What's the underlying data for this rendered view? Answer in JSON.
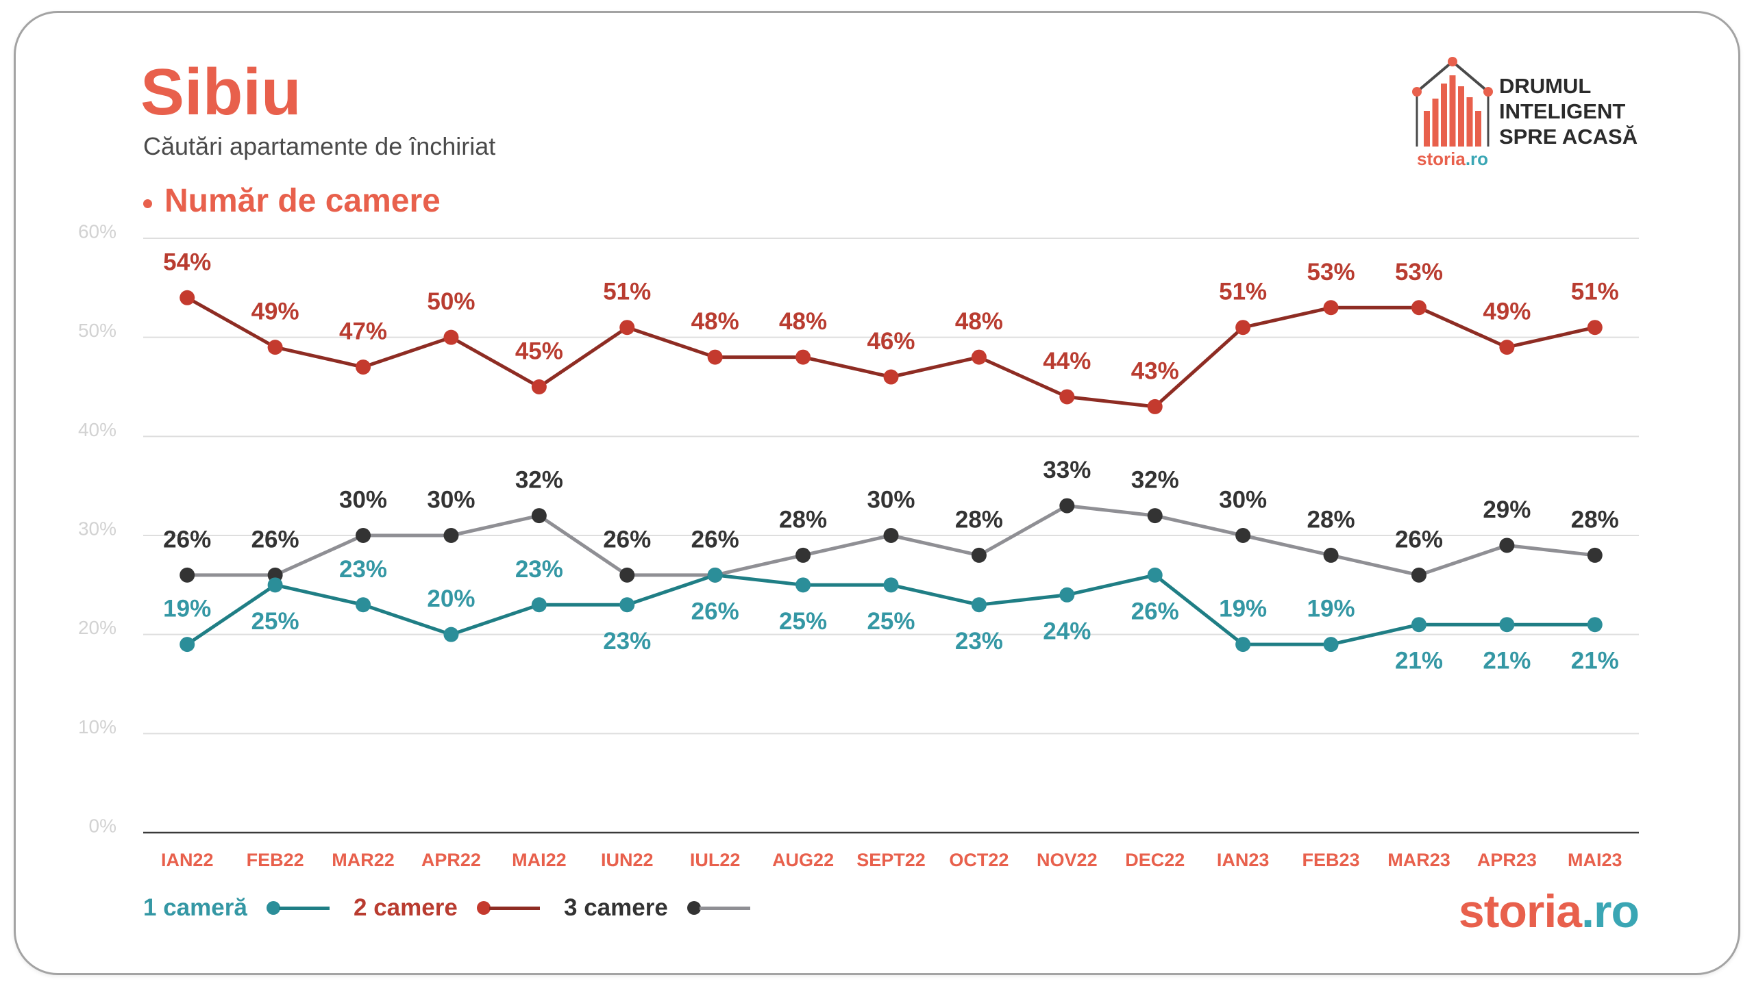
{
  "colors": {
    "accent": "#e8604c",
    "brand_teal": "#3aa6b4",
    "text_dark": "#2b2b2b",
    "subtitle": "#4a4a4a",
    "grid": "#dedede",
    "tick_label": "#d2d2d2",
    "baseline": "#3a3a3a",
    "card_border": "#a3a3a3"
  },
  "logo": {
    "icon": "house-bar-chart-icon",
    "brand_name": "storia",
    "brand_tld": ".ro",
    "tagline": [
      "DRUMUL",
      "INTELIGENT",
      "SPRE ACASĂ"
    ]
  },
  "footer": {
    "brand_name": "storia",
    "brand_tld": ".ro"
  },
  "chart_data": {
    "type": "line",
    "title": "Sibiu",
    "subtitle": "Căutări apartamente de închiriat",
    "section_label": "Număr de camere",
    "categories": [
      "IAN22",
      "FEB22",
      "MAR22",
      "APR22",
      "MAI22",
      "IUN22",
      "IUL22",
      "AUG22",
      "SEPT22",
      "OCT22",
      "NOV22",
      "DEC22",
      "IAN23",
      "FEB23",
      "MAR23",
      "APR23",
      "MAI23"
    ],
    "y_ticks": [
      0,
      10,
      20,
      30,
      40,
      50,
      60
    ],
    "ylim": [
      0,
      60
    ],
    "y_unit": "%",
    "grid": true,
    "data_labels": true,
    "legend_position": "bottom-left",
    "series": [
      {
        "name": "1 cameră",
        "values": [
          19,
          25,
          23,
          20,
          23,
          23,
          26,
          25,
          25,
          23,
          24,
          26,
          19,
          19,
          21,
          21,
          21
        ],
        "marker_color": "#2b8e99",
        "line_color": "#1f7e85",
        "label_color": "#3497a4"
      },
      {
        "name": "2 camere",
        "values": [
          54,
          49,
          47,
          50,
          45,
          51,
          48,
          48,
          46,
          48,
          44,
          43,
          51,
          53,
          53,
          49,
          51
        ],
        "marker_color": "#c43a2e",
        "line_color": "#8e2c23",
        "label_color": "#b93c30"
      },
      {
        "name": "3 camere",
        "values": [
          26,
          26,
          30,
          30,
          32,
          26,
          26,
          28,
          30,
          28,
          33,
          32,
          30,
          28,
          26,
          29,
          28
        ],
        "marker_color": "#333333",
        "line_color": "#8f8f94",
        "label_color": "#333333"
      }
    ]
  }
}
